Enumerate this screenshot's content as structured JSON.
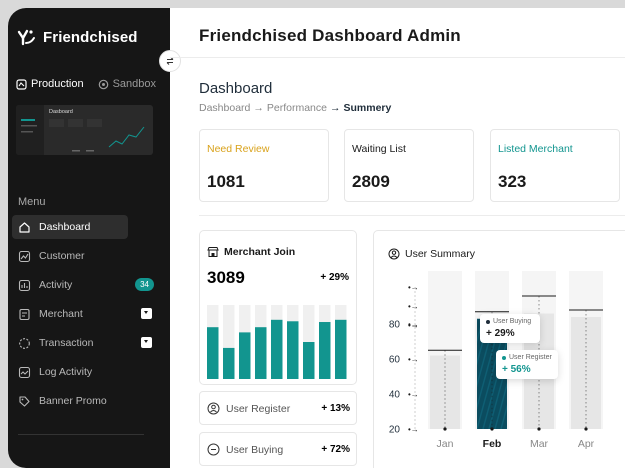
{
  "sidebar": {
    "brand": "Friendchised",
    "env": {
      "production": "Production",
      "sandbox": "Sandbox"
    },
    "preview_title": "Dasboard",
    "menu_label": "Menu",
    "items": [
      {
        "label": "Dashboard",
        "icon": "home-icon"
      },
      {
        "label": "Customer",
        "icon": "chart-icon"
      },
      {
        "label": "Activity",
        "icon": "activity-icon",
        "badge": "34"
      },
      {
        "label": "Merchant",
        "icon": "merchant-icon"
      },
      {
        "label": "Transaction",
        "icon": "transaction-icon"
      },
      {
        "label": "Log Activity",
        "icon": "log-icon"
      },
      {
        "label": "Banner Promo",
        "icon": "banner-icon"
      }
    ]
  },
  "header": {
    "title": "Friendchised Dashboard Admin"
  },
  "main": {
    "page_title": "Dashboard",
    "breadcrumb": {
      "first": "Dashboard",
      "second": "Performance",
      "current": "Summery"
    },
    "stats": [
      {
        "label": "Need Review",
        "value": "1081",
        "color": "#d9a21b"
      },
      {
        "label": "Waiting List",
        "value": "2809",
        "color": "#1a1a1a"
      },
      {
        "label": "Listed Merchant",
        "value": "323",
        "color": "#12958f"
      }
    ],
    "merchant_join": {
      "title": "Merchant Join",
      "total": "3089",
      "change": "+ 29%"
    },
    "mini_rows": [
      {
        "label": "User Register",
        "value": "+ 13%"
      },
      {
        "label": "User Buying",
        "value": "+ 72%"
      }
    ],
    "user_summary": {
      "title": "User Summary",
      "tooltip1": {
        "label": "User Buying",
        "value": "+ 29%"
      },
      "tooltip2": {
        "label": "User Register",
        "value": "+ 56%"
      }
    }
  },
  "chart_data": [
    {
      "type": "bar",
      "title": "Merchant Join",
      "values": [
        70,
        42,
        63,
        70,
        80,
        78,
        50,
        77,
        80
      ],
      "ylim": [
        0,
        100
      ],
      "colors": {
        "bar": "#12958f",
        "track": "#f0f0f0"
      }
    },
    {
      "type": "bar",
      "title": "User Summary",
      "categories": [
        "Jan",
        "Feb",
        "Mar",
        "Apr"
      ],
      "yticks": [
        "20",
        "40",
        "60",
        "80"
      ],
      "ylim": [
        20,
        100
      ],
      "values": [
        62,
        83,
        86,
        84
      ],
      "marker_values": [
        65,
        87,
        96,
        88
      ],
      "highlight": "Feb",
      "colors": {
        "bar": "#e6e6e6",
        "highlight": "#0b4c5f",
        "line": "#1a1a1a"
      }
    }
  ]
}
